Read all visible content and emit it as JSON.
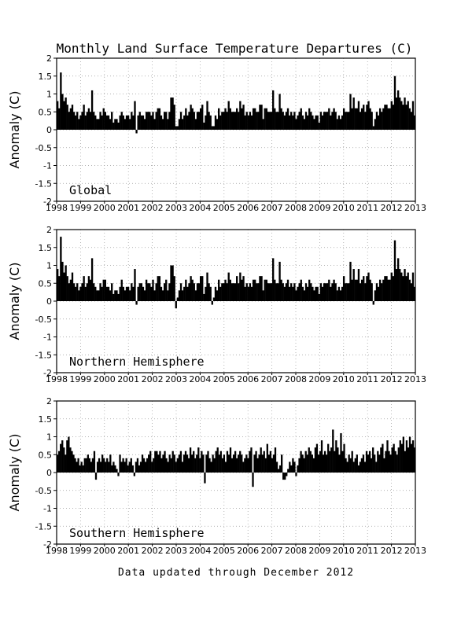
{
  "title": "Monthly Land Surface Temperature Departures (C)",
  "footer": "Data updated through December 2012",
  "chart_data": [
    {
      "type": "bar",
      "label": "Global",
      "ylabel": "Anomaly (C)",
      "ylim": [
        -2,
        2
      ],
      "xlim": [
        1998,
        2013
      ],
      "xticks": [
        "1998",
        "1999",
        "2000",
        "2001",
        "2002",
        "2003",
        "2004",
        "2005",
        "2006",
        "2007",
        "2008",
        "2009",
        "2010",
        "2011",
        "2012",
        "2013"
      ],
      "yticks": [
        "2",
        "1.5",
        "1",
        "0.5",
        "0",
        "-0.5",
        "-1",
        "-1.5",
        "-2"
      ],
      "grid": true,
      "x": "monthly, Jan 1998 to Dec 2012",
      "values": [
        0.8,
        0.6,
        1.6,
        1.0,
        0.8,
        0.9,
        0.7,
        0.5,
        0.6,
        0.7,
        0.5,
        0.4,
        0.5,
        0.3,
        0.4,
        0.5,
        0.7,
        0.4,
        0.5,
        0.6,
        0.5,
        1.1,
        0.5,
        0.4,
        0.3,
        0.3,
        0.5,
        0.4,
        0.6,
        0.5,
        0.4,
        0.4,
        0.3,
        0.5,
        0.2,
        0.3,
        0.3,
        0.2,
        0.4,
        0.5,
        0.4,
        0.3,
        0.4,
        0.4,
        0.3,
        0.5,
        0.4,
        0.8,
        -0.1,
        0.4,
        0.5,
        0.4,
        0.4,
        0.3,
        0.5,
        0.5,
        0.5,
        0.4,
        0.5,
        0.3,
        0.5,
        0.6,
        0.6,
        0.4,
        0.3,
        0.5,
        0.5,
        0.3,
        0.5,
        0.9,
        0.9,
        0.7,
        0.1,
        0.1,
        0.3,
        0.5,
        0.3,
        0.4,
        0.6,
        0.4,
        0.5,
        0.7,
        0.6,
        0.5,
        0.3,
        0.5,
        0.5,
        0.6,
        0.7,
        0.2,
        0.4,
        0.8,
        0.5,
        0.4,
        0.1,
        0.1,
        0.4,
        0.3,
        0.6,
        0.4,
        0.5,
        0.5,
        0.6,
        0.5,
        0.8,
        0.6,
        0.5,
        0.5,
        0.5,
        0.6,
        0.5,
        0.8,
        0.6,
        0.7,
        0.4,
        0.5,
        0.4,
        0.5,
        0.4,
        0.6,
        0.6,
        0.5,
        0.5,
        0.7,
        0.7,
        0.3,
        0.6,
        0.6,
        0.5,
        0.5,
        0.5,
        1.1,
        0.6,
        0.5,
        0.5,
        1.0,
        0.6,
        0.5,
        0.4,
        0.5,
        0.6,
        0.4,
        0.5,
        0.4,
        0.5,
        0.3,
        0.4,
        0.5,
        0.6,
        0.4,
        0.3,
        0.5,
        0.4,
        0.6,
        0.5,
        0.4,
        0.3,
        0.4,
        0.4,
        0.2,
        0.5,
        0.4,
        0.5,
        0.5,
        0.5,
        0.6,
        0.4,
        0.5,
        0.6,
        0.5,
        0.3,
        0.4,
        0.3,
        0.4,
        0.6,
        0.5,
        0.5,
        0.5,
        1.0,
        0.6,
        0.9,
        0.6,
        0.6,
        0.8,
        0.5,
        0.6,
        0.7,
        0.5,
        0.7,
        0.8,
        0.6,
        0.5,
        0.1,
        0.3,
        0.5,
        0.4,
        0.6,
        0.5,
        0.6,
        0.7,
        0.7,
        0.6,
        0.6,
        0.8,
        0.7,
        1.5,
        0.9,
        1.1,
        0.9,
        0.8,
        0.7,
        0.9,
        0.7,
        0.8,
        0.6,
        0.5,
        0.8,
        0.4
      ]
    },
    {
      "type": "bar",
      "label": "Northern Hemisphere",
      "ylabel": "Anomaly (C)",
      "ylim": [
        -2,
        2
      ],
      "xlim": [
        1998,
        2013
      ],
      "xticks": [
        "1998",
        "1999",
        "2000",
        "2001",
        "2002",
        "2003",
        "2004",
        "2005",
        "2006",
        "2007",
        "2008",
        "2009",
        "2010",
        "2011",
        "2012",
        "2013"
      ],
      "yticks": [
        "2",
        "1.5",
        "1",
        "0.5",
        "0",
        "-0.5",
        "-1",
        "-1.5",
        "-2"
      ],
      "grid": true,
      "x": "monthly, Jan 1998 to Dec 2012",
      "values": [
        0.9,
        0.7,
        1.8,
        1.1,
        0.8,
        1.0,
        0.7,
        0.5,
        0.6,
        0.8,
        0.5,
        0.4,
        0.5,
        0.3,
        0.4,
        0.5,
        0.7,
        0.4,
        0.5,
        0.7,
        0.6,
        1.2,
        0.5,
        0.4,
        0.3,
        0.3,
        0.5,
        0.4,
        0.6,
        0.6,
        0.4,
        0.4,
        0.3,
        0.5,
        0.2,
        0.3,
        0.3,
        0.2,
        0.4,
        0.6,
        0.4,
        0.3,
        0.4,
        0.4,
        0.3,
        0.5,
        0.4,
        0.9,
        -0.1,
        0.4,
        0.5,
        0.5,
        0.4,
        0.3,
        0.6,
        0.5,
        0.5,
        0.4,
        0.6,
        0.3,
        0.5,
        0.7,
        0.7,
        0.4,
        0.3,
        0.5,
        0.6,
        0.3,
        0.5,
        1.0,
        1.0,
        0.7,
        -0.2,
        0.1,
        0.3,
        0.5,
        0.3,
        0.4,
        0.6,
        0.4,
        0.5,
        0.7,
        0.6,
        0.5,
        0.3,
        0.5,
        0.5,
        0.7,
        0.7,
        0.2,
        0.4,
        0.8,
        0.5,
        0.4,
        -0.1,
        0.1,
        0.4,
        0.3,
        0.6,
        0.4,
        0.5,
        0.5,
        0.6,
        0.5,
        0.8,
        0.6,
        0.5,
        0.5,
        0.5,
        0.7,
        0.5,
        0.8,
        0.6,
        0.7,
        0.4,
        0.5,
        0.4,
        0.5,
        0.4,
        0.6,
        0.6,
        0.5,
        0.5,
        0.7,
        0.7,
        0.3,
        0.6,
        0.6,
        0.5,
        0.5,
        0.5,
        1.2,
        0.6,
        0.5,
        0.5,
        1.1,
        0.6,
        0.5,
        0.4,
        0.5,
        0.6,
        0.4,
        0.5,
        0.4,
        0.5,
        0.3,
        0.4,
        0.5,
        0.6,
        0.4,
        0.3,
        0.5,
        0.4,
        0.6,
        0.5,
        0.4,
        0.3,
        0.4,
        0.4,
        0.2,
        0.5,
        0.4,
        0.5,
        0.5,
        0.5,
        0.6,
        0.4,
        0.5,
        0.6,
        0.5,
        0.3,
        0.4,
        0.3,
        0.4,
        0.7,
        0.5,
        0.5,
        0.5,
        1.1,
        0.6,
        0.9,
        0.6,
        0.6,
        0.9,
        0.5,
        0.6,
        0.7,
        0.5,
        0.7,
        0.8,
        0.6,
        0.5,
        -0.1,
        0.3,
        0.5,
        0.4,
        0.6,
        0.5,
        0.6,
        0.7,
        0.7,
        0.6,
        0.6,
        0.8,
        0.7,
        1.7,
        0.9,
        1.2,
        0.9,
        0.8,
        0.7,
        0.9,
        0.7,
        0.8,
        0.6,
        0.5,
        0.8,
        0.4
      ]
    },
    {
      "type": "bar",
      "label": "Southern Hemisphere",
      "ylabel": "Anomaly (C)",
      "ylim": [
        -2,
        2
      ],
      "xlim": [
        1998,
        2013
      ],
      "xticks": [
        "1998",
        "1999",
        "2000",
        "2001",
        "2002",
        "2003",
        "2004",
        "2005",
        "2006",
        "2007",
        "2008",
        "2009",
        "2010",
        "2011",
        "2012",
        "2013"
      ],
      "yticks": [
        "2",
        "1.5",
        "1",
        "0.5",
        "0",
        "-0.5",
        "-1",
        "-1.5",
        "-2"
      ],
      "grid": true,
      "x": "monthly, Jan 1998 to Dec 2012",
      "values": [
        0.5,
        0.6,
        0.8,
        0.9,
        0.7,
        0.5,
        0.9,
        1.0,
        0.7,
        0.6,
        0.5,
        0.4,
        0.3,
        0.4,
        0.2,
        0.3,
        0.2,
        0.4,
        0.4,
        0.5,
        0.4,
        0.3,
        0.4,
        0.6,
        -0.2,
        0.3,
        0.4,
        0.3,
        0.5,
        0.4,
        0.3,
        0.4,
        0.3,
        0.5,
        0.2,
        0.3,
        0.2,
        0.1,
        -0.1,
        0.5,
        0.3,
        0.4,
        0.3,
        0.4,
        0.2,
        0.3,
        0.4,
        0.2,
        -0.1,
        0.3,
        0.4,
        0.2,
        0.3,
        0.5,
        0.4,
        0.3,
        0.4,
        0.5,
        0.6,
        0.3,
        0.4,
        0.6,
        0.6,
        0.5,
        0.6,
        0.4,
        0.5,
        0.6,
        0.4,
        0.3,
        0.5,
        0.4,
        0.6,
        0.5,
        0.3,
        0.4,
        0.5,
        0.6,
        0.3,
        0.5,
        0.6,
        0.5,
        0.4,
        0.7,
        0.5,
        0.6,
        0.4,
        0.5,
        0.7,
        0.4,
        0.6,
        0.5,
        -0.3,
        0.5,
        0.6,
        0.4,
        0.3,
        0.5,
        0.4,
        0.6,
        0.7,
        0.5,
        0.6,
        0.4,
        0.5,
        0.3,
        0.6,
        0.5,
        0.7,
        0.4,
        0.5,
        0.6,
        0.4,
        0.5,
        0.6,
        0.5,
        0.3,
        0.4,
        0.5,
        0.4,
        0.6,
        0.7,
        -0.4,
        0.5,
        0.6,
        0.4,
        0.5,
        0.7,
        0.5,
        0.6,
        0.4,
        0.8,
        0.5,
        0.6,
        0.4,
        0.5,
        0.7,
        0.3,
        0.1,
        0.2,
        0.5,
        -0.2,
        -0.2,
        -0.1,
        0.1,
        0.3,
        0.2,
        0.4,
        0.3,
        -0.1,
        0.2,
        0.4,
        0.6,
        0.5,
        0.4,
        0.6,
        0.5,
        0.7,
        0.6,
        0.5,
        0.4,
        0.7,
        0.8,
        0.5,
        0.6,
        0.9,
        0.5,
        0.6,
        0.5,
        0.8,
        0.6,
        0.7,
        1.2,
        0.6,
        0.9,
        0.7,
        0.5,
        1.1,
        0.6,
        0.8,
        0.4,
        0.3,
        0.5,
        0.4,
        0.6,
        0.3,
        0.4,
        0.5,
        0.2,
        0.3,
        0.4,
        0.5,
        0.3,
        0.6,
        0.5,
        0.6,
        0.4,
        0.7,
        0.5,
        0.3,
        0.6,
        0.5,
        0.7,
        0.8,
        0.4,
        0.6,
        0.9,
        0.6,
        0.5,
        0.7,
        0.8,
        0.6,
        0.5,
        0.7,
        0.9,
        0.8,
        1.0,
        0.6,
        0.9,
        0.7,
        1.0,
        0.8,
        0.9,
        0.7
      ]
    }
  ]
}
